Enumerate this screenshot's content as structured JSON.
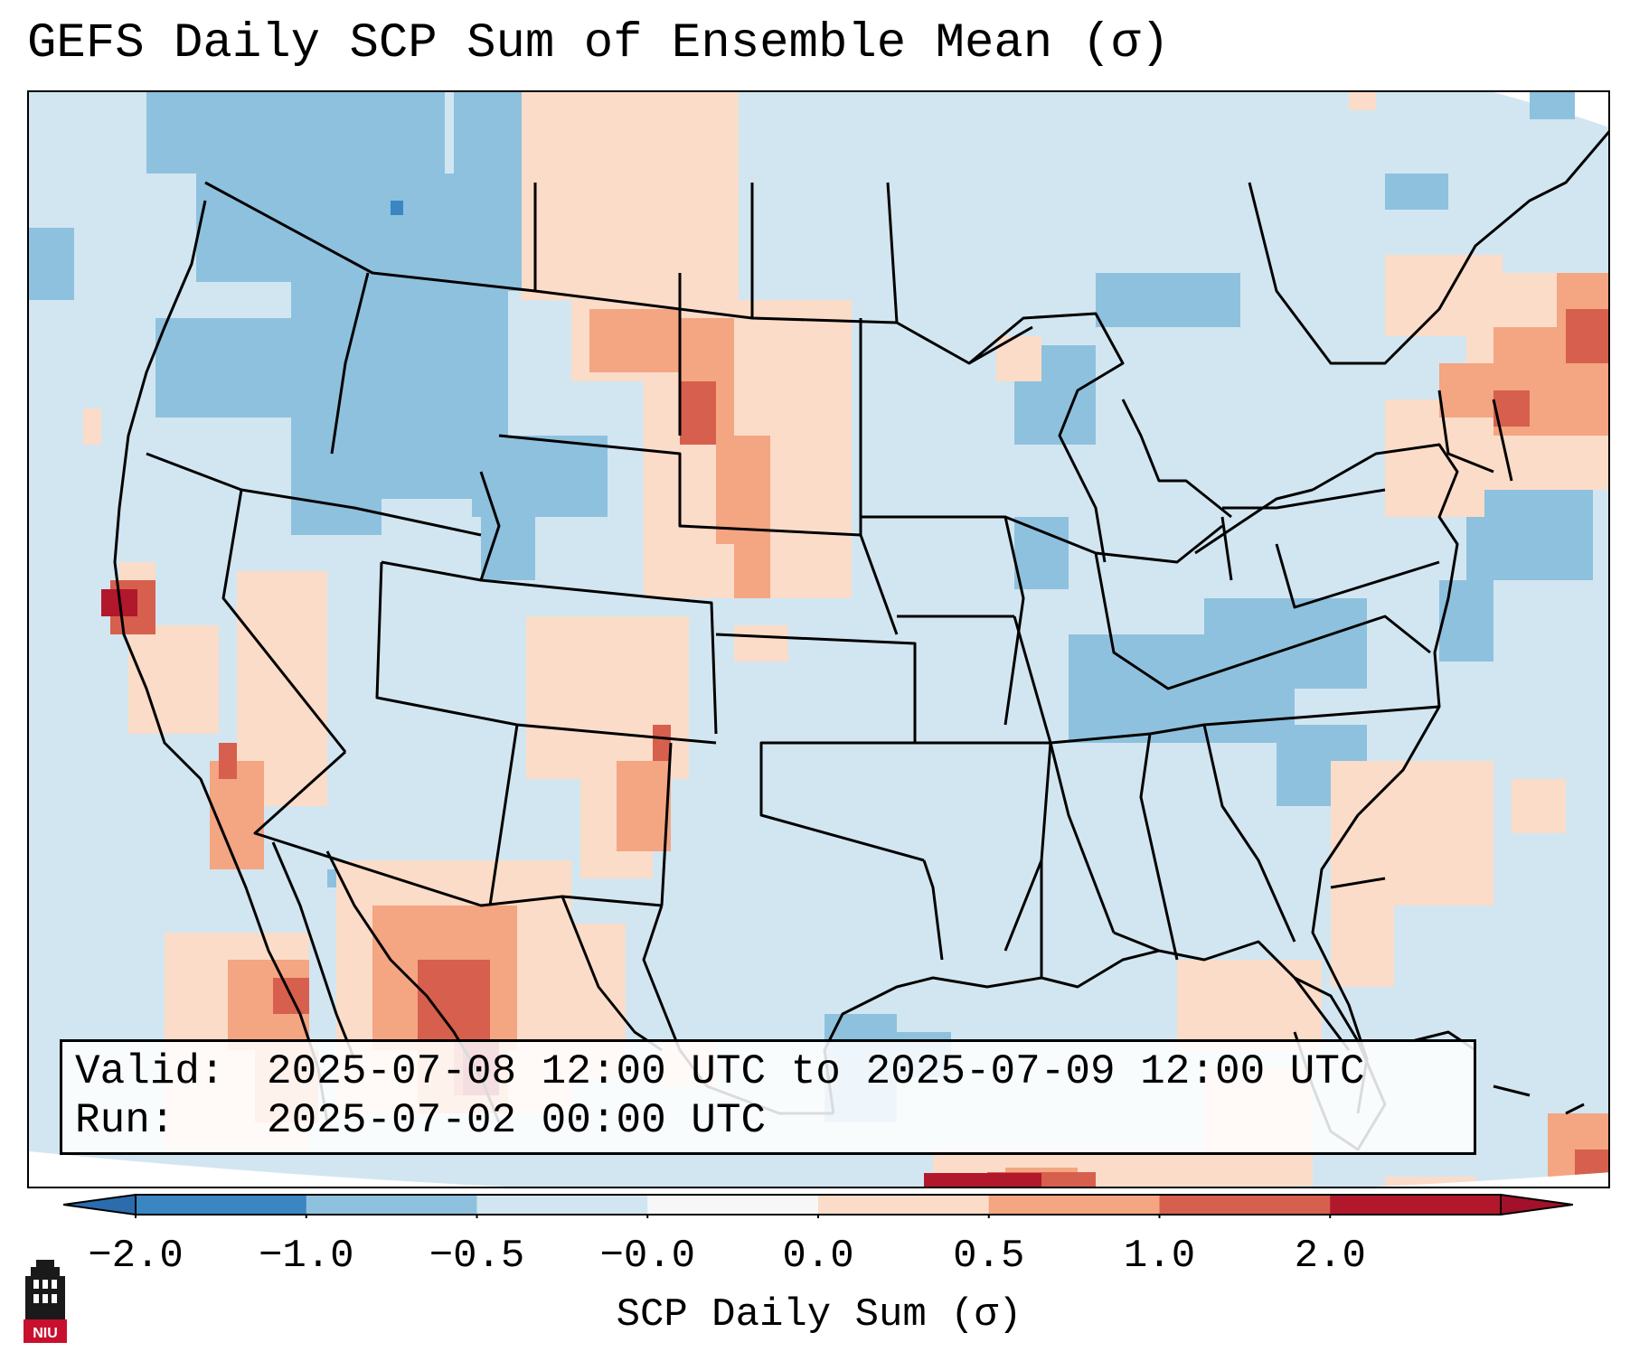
{
  "title": "GEFS Daily SCP Sum of Ensemble Mean (σ)",
  "info": {
    "valid_label": "Valid:",
    "valid_value": "2025-07-08 12:00 UTC to 2025-07-09 12:00 UTC",
    "run_label": "Run:",
    "run_value": "2025-07-02 00:00 UTC"
  },
  "colorbar": {
    "label": "SCP Daily Sum (σ)",
    "ticks": [
      "−2.0",
      "−1.0",
      "−0.5",
      "−0.0",
      "0.0",
      "0.5",
      "1.0",
      "2.0"
    ],
    "bins": [
      "#3a86c2",
      "#8ec1de",
      "#d2e6f1",
      "#f7f7f7",
      "#fbdcc8",
      "#f4a582",
      "#d6604d",
      "#b2182b"
    ],
    "extend_low_color": "#2b6cad",
    "extend_high_color": "#a3102a"
  },
  "map": {
    "domain": "Continental United States",
    "background_color": "#d2e6f1",
    "outside_color": "#ffffff"
  },
  "logo": {
    "text": "NIU"
  }
}
